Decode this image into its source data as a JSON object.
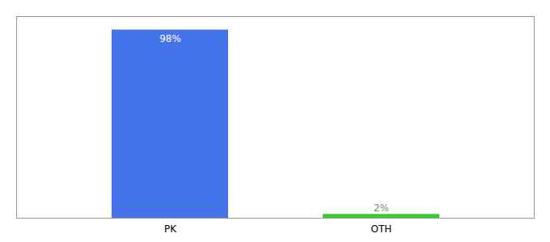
{
  "chart_data": {
    "type": "bar",
    "categories": [
      "PK",
      "OTH"
    ],
    "values": [
      98,
      2
    ],
    "value_labels": [
      "98%",
      "2%"
    ],
    "colors": [
      "#4472e8",
      "#33cc33"
    ],
    "ylim": [
      0,
      105
    ],
    "data_labels": true,
    "tick_labels": "x"
  }
}
